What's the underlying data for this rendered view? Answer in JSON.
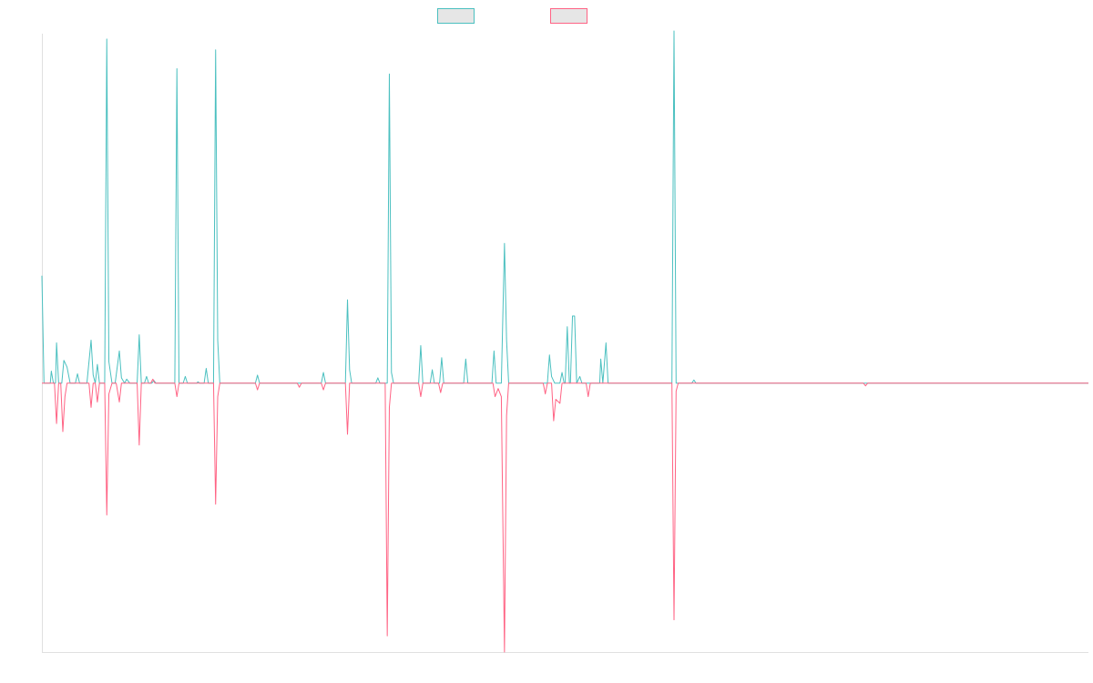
{
  "colors": {
    "series_a": "#4bc0c0",
    "series_b": "#ff6384",
    "legend_fill": "#e6e6e6",
    "axis": "#e0e0e0"
  },
  "chart_data": {
    "type": "line",
    "title": "",
    "xlabel": "",
    "ylabel": "",
    "grid": false,
    "legend_position": "top-center",
    "x_range": [
      0,
      100
    ],
    "ylim": [
      -1.0,
      1.3
    ],
    "series": [
      {
        "color": "#4bc0c0",
        "points": [
          [
            0.0,
            0.4
          ],
          [
            0.2,
            0.0
          ],
          [
            0.8,
            0.0
          ],
          [
            0.9,
            0.045
          ],
          [
            1.1,
            0.0
          ],
          [
            1.3,
            0.0
          ],
          [
            1.4,
            0.15
          ],
          [
            1.6,
            0.0
          ],
          [
            1.9,
            0.0
          ],
          [
            2.1,
            0.085
          ],
          [
            2.4,
            0.06
          ],
          [
            2.7,
            0.0
          ],
          [
            3.2,
            0.0
          ],
          [
            3.4,
            0.035
          ],
          [
            3.6,
            0.0
          ],
          [
            3.9,
            0.0
          ],
          [
            4.1,
            0.0
          ],
          [
            4.3,
            0.0
          ],
          [
            4.7,
            0.16
          ],
          [
            4.9,
            0.03
          ],
          [
            5.1,
            0.0
          ],
          [
            5.3,
            0.07
          ],
          [
            5.5,
            0.0
          ],
          [
            5.8,
            0.0
          ],
          [
            6.0,
            0.0
          ],
          [
            6.2,
            1.28
          ],
          [
            6.4,
            0.08
          ],
          [
            6.7,
            0.0
          ],
          [
            7.0,
            0.0
          ],
          [
            7.4,
            0.12
          ],
          [
            7.6,
            0.02
          ],
          [
            7.9,
            0.0
          ],
          [
            8.1,
            0.015
          ],
          [
            8.4,
            0.0
          ],
          [
            9.1,
            0.0
          ],
          [
            9.3,
            0.18
          ],
          [
            9.5,
            0.0
          ],
          [
            9.8,
            0.0
          ],
          [
            10.0,
            0.025
          ],
          [
            10.2,
            0.0
          ],
          [
            10.5,
            0.0
          ],
          [
            10.7,
            0.01
          ],
          [
            10.9,
            0.0
          ],
          [
            12.7,
            0.0
          ],
          [
            12.9,
            1.17
          ],
          [
            13.1,
            0.0
          ],
          [
            13.5,
            0.0
          ],
          [
            13.7,
            0.025
          ],
          [
            13.9,
            0.0
          ],
          [
            14.8,
            0.0
          ],
          [
            14.9,
            0.005
          ],
          [
            15.1,
            0.0
          ],
          [
            15.5,
            0.0
          ],
          [
            15.7,
            0.055
          ],
          [
            15.9,
            0.0
          ],
          [
            16.4,
            0.0
          ],
          [
            16.6,
            1.24
          ],
          [
            16.8,
            0.16
          ],
          [
            17.0,
            0.0
          ],
          [
            17.2,
            0.0
          ],
          [
            17.4,
            0.0
          ],
          [
            20.4,
            0.0
          ],
          [
            20.6,
            0.03
          ],
          [
            20.8,
            0.0
          ],
          [
            26.7,
            0.0
          ],
          [
            26.9,
            0.04
          ],
          [
            27.1,
            0.0
          ],
          [
            29.0,
            0.0
          ],
          [
            29.2,
            0.31
          ],
          [
            29.4,
            0.05
          ],
          [
            29.6,
            0.0
          ],
          [
            31.9,
            0.0
          ],
          [
            32.1,
            0.02
          ],
          [
            32.3,
            0.0
          ],
          [
            33.0,
            0.0
          ],
          [
            33.2,
            1.15
          ],
          [
            33.4,
            0.04
          ],
          [
            33.6,
            0.0
          ],
          [
            36.0,
            0.0
          ],
          [
            36.2,
            0.14
          ],
          [
            36.4,
            0.0
          ],
          [
            37.1,
            0.0
          ],
          [
            37.3,
            0.05
          ],
          [
            37.5,
            0.0
          ],
          [
            38.0,
            0.0
          ],
          [
            38.2,
            0.095
          ],
          [
            38.4,
            0.0
          ],
          [
            40.3,
            0.0
          ],
          [
            40.5,
            0.09
          ],
          [
            40.7,
            0.0
          ],
          [
            43.0,
            0.0
          ],
          [
            43.2,
            0.12
          ],
          [
            43.4,
            0.0
          ],
          [
            43.9,
            0.0
          ],
          [
            44.2,
            0.52
          ],
          [
            44.4,
            0.16
          ],
          [
            44.6,
            0.0
          ],
          [
            48.3,
            0.0
          ],
          [
            48.5,
            0.105
          ],
          [
            48.7,
            0.025
          ],
          [
            49.0,
            0.0
          ],
          [
            49.5,
            0.0
          ],
          [
            49.7,
            0.04
          ],
          [
            49.9,
            0.0
          ],
          [
            50.0,
            0.0
          ],
          [
            50.2,
            0.21
          ],
          [
            50.4,
            0.0
          ],
          [
            50.5,
            0.0
          ],
          [
            50.7,
            0.25
          ],
          [
            50.9,
            0.25
          ],
          [
            51.1,
            0.0
          ],
          [
            51.4,
            0.025
          ],
          [
            51.6,
            0.0
          ],
          [
            52.0,
            0.0
          ],
          [
            52.2,
            0.0
          ],
          [
            53.3,
            0.0
          ],
          [
            53.4,
            0.09
          ],
          [
            53.6,
            0.0
          ],
          [
            53.9,
            0.15
          ],
          [
            54.1,
            0.0
          ],
          [
            60.2,
            0.0
          ],
          [
            60.4,
            1.31
          ],
          [
            60.6,
            0.0
          ],
          [
            62.1,
            0.0
          ],
          [
            62.3,
            0.012
          ],
          [
            62.5,
            0.0
          ],
          [
            100.0,
            0.0
          ]
        ]
      },
      {
        "color": "#ff6384",
        "points": [
          [
            0.0,
            0.0
          ],
          [
            1.2,
            0.0
          ],
          [
            1.4,
            -0.15
          ],
          [
            1.6,
            0.0
          ],
          [
            1.8,
            0.0
          ],
          [
            2.0,
            -0.18
          ],
          [
            2.2,
            -0.05
          ],
          [
            2.4,
            0.0
          ],
          [
            4.5,
            0.0
          ],
          [
            4.7,
            -0.09
          ],
          [
            4.9,
            0.0
          ],
          [
            5.1,
            0.0
          ],
          [
            5.3,
            -0.07
          ],
          [
            5.5,
            0.0
          ],
          [
            6.0,
            0.0
          ],
          [
            6.2,
            -0.49
          ],
          [
            6.4,
            -0.04
          ],
          [
            6.7,
            0.0
          ],
          [
            7.1,
            0.0
          ],
          [
            7.4,
            -0.07
          ],
          [
            7.6,
            0.0
          ],
          [
            9.1,
            0.0
          ],
          [
            9.3,
            -0.23
          ],
          [
            9.5,
            0.0
          ],
          [
            10.4,
            0.0
          ],
          [
            10.6,
            0.015
          ],
          [
            10.8,
            0.0
          ],
          [
            12.7,
            0.0
          ],
          [
            12.9,
            -0.05
          ],
          [
            13.1,
            0.0
          ],
          [
            16.4,
            0.0
          ],
          [
            16.6,
            -0.45
          ],
          [
            16.8,
            -0.05
          ],
          [
            17.0,
            0.0
          ],
          [
            20.4,
            0.0
          ],
          [
            20.6,
            -0.025
          ],
          [
            20.8,
            0.0
          ],
          [
            24.4,
            0.0
          ],
          [
            24.6,
            -0.015
          ],
          [
            24.8,
            0.0
          ],
          [
            26.7,
            0.0
          ],
          [
            26.9,
            -0.025
          ],
          [
            27.1,
            0.0
          ],
          [
            29.0,
            0.0
          ],
          [
            29.2,
            -0.19
          ],
          [
            29.4,
            0.0
          ],
          [
            32.8,
            0.0
          ],
          [
            33.0,
            -0.94
          ],
          [
            33.2,
            -0.09
          ],
          [
            33.4,
            0.0
          ],
          [
            33.6,
            0.0
          ],
          [
            36.0,
            0.0
          ],
          [
            36.2,
            -0.05
          ],
          [
            36.4,
            0.0
          ],
          [
            37.9,
            0.0
          ],
          [
            38.1,
            -0.035
          ],
          [
            38.3,
            0.0
          ],
          [
            43.1,
            0.0
          ],
          [
            43.3,
            -0.05
          ],
          [
            43.6,
            -0.02
          ],
          [
            43.9,
            -0.05
          ],
          [
            44.2,
            -1.0
          ],
          [
            44.4,
            -0.12
          ],
          [
            44.6,
            0.0
          ],
          [
            47.9,
            0.0
          ],
          [
            48.1,
            -0.04
          ],
          [
            48.3,
            0.0
          ],
          [
            48.7,
            0.0
          ],
          [
            48.9,
            -0.14
          ],
          [
            49.1,
            -0.06
          ],
          [
            49.5,
            -0.075
          ],
          [
            49.7,
            0.0
          ],
          [
            52.0,
            0.0
          ],
          [
            52.2,
            -0.05
          ],
          [
            52.4,
            0.0
          ],
          [
            60.2,
            0.0
          ],
          [
            60.4,
            -0.88
          ],
          [
            60.6,
            -0.03
          ],
          [
            60.8,
            0.0
          ],
          [
            78.5,
            0.0
          ],
          [
            78.7,
            -0.01
          ],
          [
            78.9,
            0.0
          ],
          [
            100.0,
            0.0
          ]
        ]
      }
    ]
  }
}
